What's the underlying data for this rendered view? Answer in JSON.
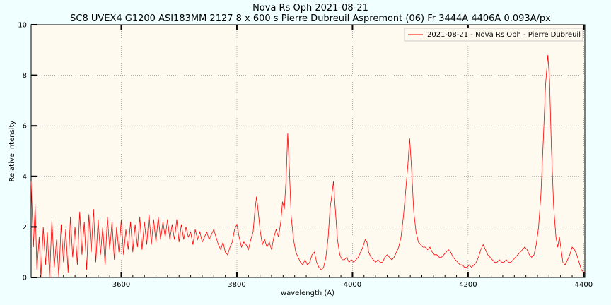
{
  "chart_data": {
    "type": "line",
    "title": "Nova Rs Oph 2021-08-21",
    "subtitle": "SC8 UVEX4 G1200 ASI183MM 2127 8 x 600 s Pierre Dubreuil Aspremont (06) Fr 3444A 4406A 0.093A/px",
    "xlabel": "wavelength (A)",
    "ylabel": "Relative intensity",
    "xlim": [
      3444,
      4402
    ],
    "ylim": [
      0,
      10
    ],
    "xticks": [
      3600,
      3800,
      4000,
      4200,
      4400
    ],
    "yticks": [
      0,
      2,
      4,
      6,
      8,
      10
    ],
    "grid": true,
    "legend_position": "top-right",
    "colors": {
      "series": "#ff0000",
      "plot_bg": "#fffaf0",
      "page_bg": "#f0ffff",
      "grid": "#808080"
    },
    "series": [
      {
        "name": "2021-08-21 - Nova Rs Oph - Pierre Dubreuil",
        "points": [
          [
            3444,
            3.8
          ],
          [
            3448,
            1.2
          ],
          [
            3451,
            2.9
          ],
          [
            3454,
            0.3
          ],
          [
            3458,
            1.6
          ],
          [
            3461,
            0.0
          ],
          [
            3465,
            2.0
          ],
          [
            3469,
            0.5
          ],
          [
            3472,
            1.8
          ],
          [
            3476,
            0.0
          ],
          [
            3480,
            2.3
          ],
          [
            3484,
            0.4
          ],
          [
            3488,
            1.5
          ],
          [
            3492,
            0.0
          ],
          [
            3496,
            2.1
          ],
          [
            3500,
            0.6
          ],
          [
            3504,
            1.9
          ],
          [
            3508,
            0.2
          ],
          [
            3512,
            2.4
          ],
          [
            3516,
            0.8
          ],
          [
            3520,
            2.0
          ],
          [
            3524,
            0.5
          ],
          [
            3528,
            2.6
          ],
          [
            3532,
            0.9
          ],
          [
            3536,
            2.2
          ],
          [
            3540,
            0.3
          ],
          [
            3544,
            2.5
          ],
          [
            3548,
            1.0
          ],
          [
            3552,
            2.7
          ],
          [
            3556,
            0.6
          ],
          [
            3560,
            2.3
          ],
          [
            3564,
            0.9
          ],
          [
            3568,
            2.0
          ],
          [
            3572,
            0.5
          ],
          [
            3576,
            2.4
          ],
          [
            3580,
            1.1
          ],
          [
            3584,
            2.2
          ],
          [
            3588,
            0.7
          ],
          [
            3592,
            2.0
          ],
          [
            3596,
            1.0
          ],
          [
            3600,
            2.3
          ],
          [
            3604,
            0.9
          ],
          [
            3608,
            1.9
          ],
          [
            3612,
            1.1
          ],
          [
            3616,
            2.2
          ],
          [
            3620,
            1.0
          ],
          [
            3624,
            2.1
          ],
          [
            3628,
            1.2
          ],
          [
            3632,
            2.4
          ],
          [
            3636,
            1.1
          ],
          [
            3640,
            2.2
          ],
          [
            3644,
            1.3
          ],
          [
            3648,
            2.5
          ],
          [
            3652,
            1.3
          ],
          [
            3656,
            2.3
          ],
          [
            3660,
            1.4
          ],
          [
            3664,
            2.4
          ],
          [
            3668,
            1.5
          ],
          [
            3672,
            2.2
          ],
          [
            3676,
            1.6
          ],
          [
            3680,
            2.3
          ],
          [
            3684,
            1.5
          ],
          [
            3688,
            2.1
          ],
          [
            3692,
            1.5
          ],
          [
            3696,
            2.3
          ],
          [
            3700,
            1.4
          ],
          [
            3704,
            2.1
          ],
          [
            3708,
            1.5
          ],
          [
            3712,
            2.0
          ],
          [
            3716,
            1.6
          ],
          [
            3720,
            1.8
          ],
          [
            3724,
            1.3
          ],
          [
            3728,
            1.9
          ],
          [
            3732,
            1.5
          ],
          [
            3736,
            1.8
          ],
          [
            3740,
            1.4
          ],
          [
            3744,
            1.6
          ],
          [
            3748,
            1.8
          ],
          [
            3752,
            1.5
          ],
          [
            3756,
            1.7
          ],
          [
            3760,
            1.9
          ],
          [
            3764,
            1.6
          ],
          [
            3768,
            1.3
          ],
          [
            3772,
            1.1
          ],
          [
            3776,
            1.4
          ],
          [
            3780,
            1.0
          ],
          [
            3784,
            0.9
          ],
          [
            3788,
            1.2
          ],
          [
            3792,
            1.4
          ],
          [
            3796,
            1.9
          ],
          [
            3800,
            2.1
          ],
          [
            3804,
            1.6
          ],
          [
            3808,
            1.2
          ],
          [
            3812,
            1.4
          ],
          [
            3816,
            1.3
          ],
          [
            3820,
            1.1
          ],
          [
            3824,
            1.5
          ],
          [
            3828,
            1.8
          ],
          [
            3831,
            2.6
          ],
          [
            3834,
            3.2
          ],
          [
            3837,
            2.6
          ],
          [
            3840,
            1.9
          ],
          [
            3844,
            1.3
          ],
          [
            3848,
            1.5
          ],
          [
            3852,
            1.2
          ],
          [
            3856,
            1.4
          ],
          [
            3860,
            1.1
          ],
          [
            3864,
            1.6
          ],
          [
            3868,
            1.9
          ],
          [
            3872,
            1.6
          ],
          [
            3876,
            2.2
          ],
          [
            3879,
            3.0
          ],
          [
            3882,
            2.7
          ],
          [
            3885,
            3.8
          ],
          [
            3888,
            5.7
          ],
          [
            3891,
            4.2
          ],
          [
            3894,
            2.4
          ],
          [
            3898,
            1.5
          ],
          [
            3902,
            1.0
          ],
          [
            3906,
            0.8
          ],
          [
            3910,
            0.6
          ],
          [
            3914,
            0.5
          ],
          [
            3918,
            0.7
          ],
          [
            3922,
            0.5
          ],
          [
            3926,
            0.6
          ],
          [
            3930,
            0.9
          ],
          [
            3934,
            1.0
          ],
          [
            3938,
            0.6
          ],
          [
            3942,
            0.4
          ],
          [
            3946,
            0.3
          ],
          [
            3950,
            0.4
          ],
          [
            3954,
            0.8
          ],
          [
            3958,
            1.6
          ],
          [
            3961,
            2.7
          ],
          [
            3964,
            3.2
          ],
          [
            3967,
            3.8
          ],
          [
            3970,
            2.8
          ],
          [
            3974,
            1.5
          ],
          [
            3978,
            0.9
          ],
          [
            3982,
            0.7
          ],
          [
            3986,
            0.7
          ],
          [
            3990,
            0.8
          ],
          [
            3994,
            0.6
          ],
          [
            3998,
            0.7
          ],
          [
            4002,
            0.6
          ],
          [
            4006,
            0.7
          ],
          [
            4010,
            0.8
          ],
          [
            4014,
            1.0
          ],
          [
            4018,
            1.2
          ],
          [
            4022,
            1.5
          ],
          [
            4025,
            1.4
          ],
          [
            4028,
            1.0
          ],
          [
            4032,
            0.8
          ],
          [
            4036,
            0.7
          ],
          [
            4040,
            0.6
          ],
          [
            4044,
            0.7
          ],
          [
            4048,
            0.6
          ],
          [
            4052,
            0.6
          ],
          [
            4056,
            0.8
          ],
          [
            4060,
            0.9
          ],
          [
            4064,
            0.8
          ],
          [
            4068,
            0.7
          ],
          [
            4072,
            0.8
          ],
          [
            4076,
            1.0
          ],
          [
            4080,
            1.2
          ],
          [
            4084,
            1.6
          ],
          [
            4088,
            2.4
          ],
          [
            4092,
            3.4
          ],
          [
            4096,
            4.5
          ],
          [
            4099,
            5.5
          ],
          [
            4102,
            4.4
          ],
          [
            4106,
            2.6
          ],
          [
            4110,
            1.8
          ],
          [
            4114,
            1.4
          ],
          [
            4118,
            1.3
          ],
          [
            4122,
            1.2
          ],
          [
            4126,
            1.2
          ],
          [
            4130,
            1.1
          ],
          [
            4134,
            1.2
          ],
          [
            4138,
            1.0
          ],
          [
            4142,
            0.9
          ],
          [
            4146,
            0.9
          ],
          [
            4150,
            0.8
          ],
          [
            4154,
            0.8
          ],
          [
            4158,
            0.9
          ],
          [
            4162,
            1.0
          ],
          [
            4166,
            1.1
          ],
          [
            4170,
            1.0
          ],
          [
            4174,
            0.8
          ],
          [
            4178,
            0.7
          ],
          [
            4182,
            0.6
          ],
          [
            4186,
            0.5
          ],
          [
            4190,
            0.5
          ],
          [
            4194,
            0.4
          ],
          [
            4198,
            0.4
          ],
          [
            4202,
            0.5
          ],
          [
            4206,
            0.4
          ],
          [
            4210,
            0.5
          ],
          [
            4214,
            0.6
          ],
          [
            4218,
            0.8
          ],
          [
            4222,
            1.1
          ],
          [
            4226,
            1.3
          ],
          [
            4230,
            1.1
          ],
          [
            4234,
            0.9
          ],
          [
            4238,
            0.8
          ],
          [
            4242,
            0.7
          ],
          [
            4246,
            0.6
          ],
          [
            4250,
            0.6
          ],
          [
            4254,
            0.7
          ],
          [
            4258,
            0.6
          ],
          [
            4262,
            0.6
          ],
          [
            4266,
            0.7
          ],
          [
            4270,
            0.6
          ],
          [
            4274,
            0.6
          ],
          [
            4278,
            0.7
          ],
          [
            4282,
            0.8
          ],
          [
            4286,
            0.9
          ],
          [
            4290,
            1.0
          ],
          [
            4294,
            1.1
          ],
          [
            4298,
            1.2
          ],
          [
            4302,
            1.1
          ],
          [
            4306,
            0.9
          ],
          [
            4310,
            0.8
          ],
          [
            4314,
            0.9
          ],
          [
            4318,
            1.3
          ],
          [
            4322,
            2.0
          ],
          [
            4326,
            3.3
          ],
          [
            4330,
            5.4
          ],
          [
            4334,
            7.6
          ],
          [
            4338,
            8.8
          ],
          [
            4341,
            7.8
          ],
          [
            4344,
            5.2
          ],
          [
            4348,
            2.8
          ],
          [
            4352,
            1.6
          ],
          [
            4355,
            1.2
          ],
          [
            4358,
            1.6
          ],
          [
            4361,
            1.1
          ],
          [
            4364,
            0.6
          ],
          [
            4368,
            0.5
          ],
          [
            4372,
            0.7
          ],
          [
            4376,
            0.9
          ],
          [
            4380,
            1.2
          ],
          [
            4384,
            1.1
          ],
          [
            4388,
            0.9
          ],
          [
            4392,
            0.6
          ],
          [
            4396,
            0.3
          ],
          [
            4400,
            0.2
          ]
        ]
      }
    ]
  }
}
